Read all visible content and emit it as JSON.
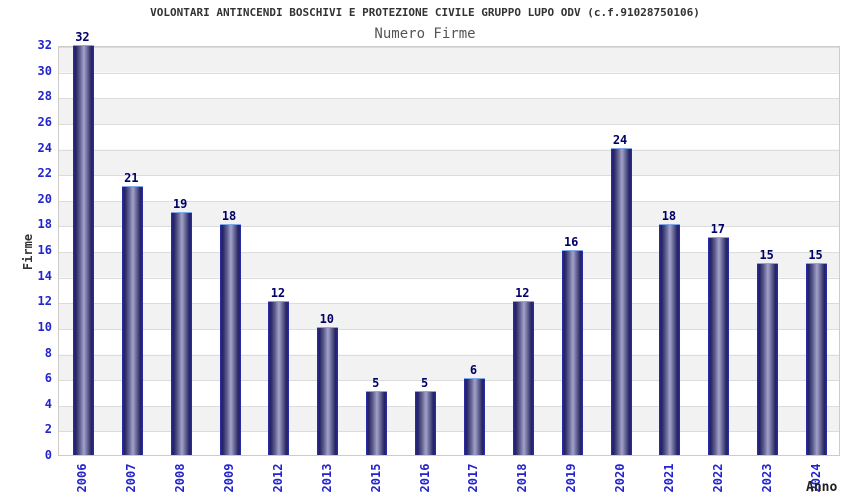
{
  "header": {
    "title": "VOLONTARI ANTINCENDI BOSCHIVI E PROTEZIONE CIVILE GRUPPO LUPO ODV (c.f.91028750106)",
    "subtitle": "Numero Firme"
  },
  "chart_data": {
    "type": "bar",
    "title": "VOLONTARI ANTINCENDI BOSCHIVI E PROTEZIONE CIVILE GRUPPO LUPO ODV (c.f.91028750106)",
    "subtitle": "Numero Firme",
    "xlabel": "Anno",
    "ylabel": "Firme",
    "categories": [
      "2006",
      "2007",
      "2008",
      "2009",
      "2012",
      "2013",
      "2015",
      "2016",
      "2017",
      "2018",
      "2019",
      "2020",
      "2021",
      "2022",
      "2023",
      "2024"
    ],
    "values": [
      32,
      21,
      19,
      18,
      12,
      10,
      5,
      5,
      6,
      12,
      16,
      24,
      18,
      17,
      15,
      15
    ],
    "ylim": [
      0,
      32
    ],
    "ytick_step": 2,
    "grid": "horizontal alternating bands every 2 units",
    "legend": "none",
    "colors": {
      "bar_edge": "#2b2bb4",
      "bar_dark": "#23235f",
      "bar_highlight": "#a2a2c9",
      "bar_cap": "#7fa8ef",
      "tick_label": "#2424cc",
      "value_label": "#000066",
      "band_gray": "#f2f2f2",
      "band_white": "#ffffff",
      "gridline": "#dcdcdc",
      "plot_border": "#cccccc",
      "title_text": "#333333",
      "subtitle_text": "#555555"
    }
  }
}
